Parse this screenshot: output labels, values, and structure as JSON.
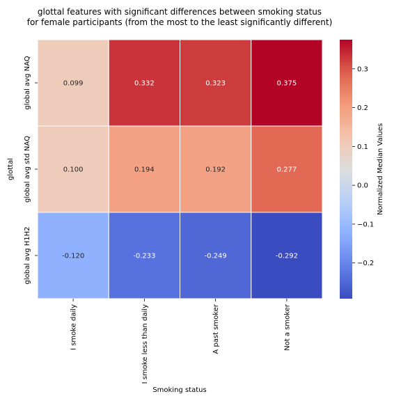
{
  "chart_data": {
    "type": "heatmap",
    "title_lines": [
      "glottal features with significant differences between smoking status",
      "for female participants (from the most to the least significantly different)"
    ],
    "xlabel": "Smoking status",
    "ylabel": "glottal",
    "x_categories": [
      "I smoke daily",
      "I smoke less than daily",
      "A past smoker",
      "Not a smoker"
    ],
    "y_categories": [
      "global avg NAQ",
      "global avg std NAQ",
      "global avg H1H2"
    ],
    "values": [
      [
        0.099,
        0.332,
        0.323,
        0.375
      ],
      [
        0.1,
        0.194,
        0.192,
        0.277
      ],
      [
        -0.12,
        -0.233,
        -0.249,
        -0.292
      ]
    ],
    "value_labels": [
      [
        "0.099",
        "0.332",
        "0.323",
        "0.375"
      ],
      [
        "0.100",
        "0.194",
        "0.192",
        "0.277"
      ],
      [
        "-0.120",
        "-0.233",
        "-0.249",
        "-0.292"
      ]
    ],
    "colormap": "coolwarm",
    "colorbar": {
      "label": "Normalized Median Values",
      "range": [
        -0.292,
        0.375
      ],
      "ticks": [
        -0.2,
        -0.1,
        0.0,
        0.1,
        0.2,
        0.3
      ],
      "tick_labels": [
        "−0.2",
        "−0.1",
        "0.0",
        "0.1",
        "0.2",
        "0.3"
      ]
    },
    "cell_border_color": "#ffffff"
  }
}
